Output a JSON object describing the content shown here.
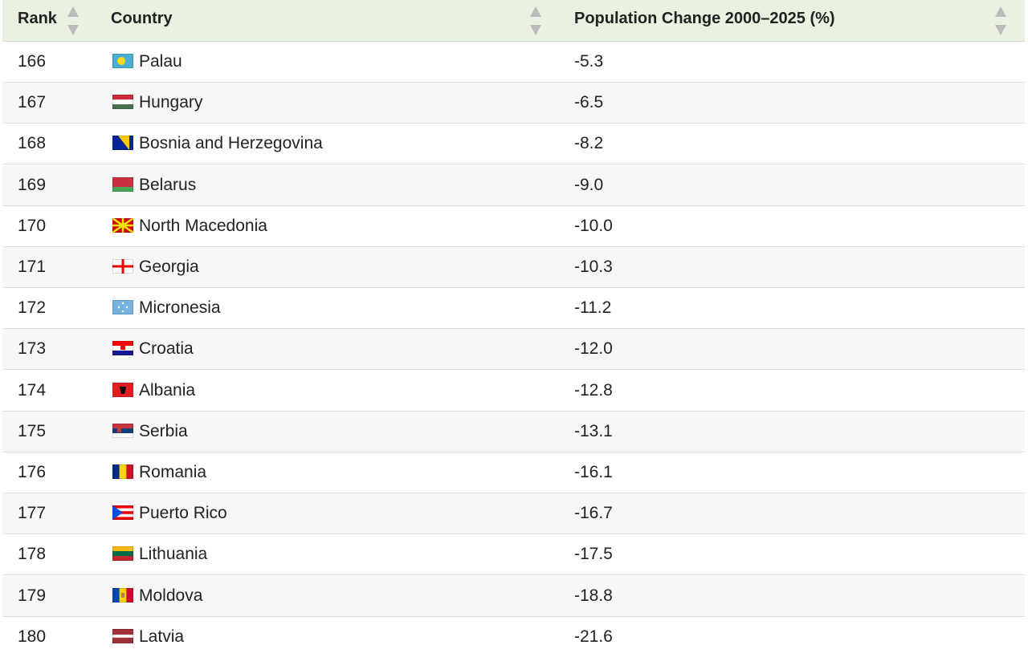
{
  "table": {
    "header": [
      "Rank",
      "Country",
      "Population Change 2000–2025 (%)"
    ],
    "rows": [
      [
        166,
        "Palau",
        "-5.3"
      ],
      [
        167,
        "Hungary",
        "-6.5"
      ],
      [
        168,
        "Bosnia and Herzegovina",
        "-8.2"
      ],
      [
        169,
        "Belarus",
        "-9.0"
      ],
      [
        170,
        "North Macedonia",
        "-10.0"
      ],
      [
        171,
        "Georgia",
        "-10.3"
      ],
      [
        172,
        "Micronesia",
        "-11.2"
      ],
      [
        173,
        "Croatia",
        "-12.0"
      ],
      [
        174,
        "Albania",
        "-12.8"
      ],
      [
        175,
        "Serbia",
        "-13.1"
      ],
      [
        176,
        "Romania",
        "-16.1"
      ],
      [
        177,
        "Puerto Rico",
        "-16.7"
      ],
      [
        178,
        "Lithuania",
        "-17.5"
      ],
      [
        179,
        "Moldova",
        "-18.8"
      ],
      [
        180,
        "Latvia",
        "-21.6"
      ]
    ]
  }
}
